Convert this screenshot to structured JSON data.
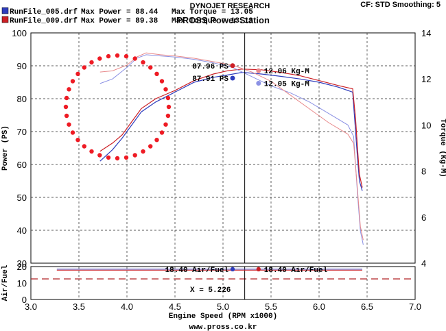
{
  "header": {
    "lab": "DYNOJET RESEARCH",
    "station": "PROSS Power Station",
    "cf": "CF: STD  Smoothing: 5",
    "runs": [
      {
        "color": "#2e3dbd",
        "file": "RunFile_005.drf",
        "power": "Max Power = 88.44",
        "torque": "Max Torque = 13.05"
      },
      {
        "color": "#cc1f25",
        "file": "RunFile_009.drf",
        "power": "Max Power = 89.38",
        "torque": "Max Torque = 13.13"
      }
    ]
  },
  "footer": {
    "url": "www.pross.co.kr"
  },
  "chart_data": [
    {
      "type": "line",
      "xlabel": "Engine Speed (RPM x1000)",
      "ylabel": "Power (PS)",
      "y2label": "Torque (Kg-M)",
      "xlim": [
        3.0,
        7.0
      ],
      "ylim": [
        30,
        100
      ],
      "y2lim": [
        4,
        14
      ],
      "x_ticks": [
        "3.0",
        "3.5",
        "4.0",
        "4.5",
        "5.0",
        "5.5",
        "6.0",
        "6.5",
        "7.0"
      ],
      "y_ticks": [
        "30",
        "40",
        "50",
        "60",
        "70",
        "80",
        "90",
        "100"
      ],
      "y2_ticks": [
        "4",
        "6",
        "8",
        "10",
        "12",
        "14"
      ],
      "grid": "dashed",
      "cursor_x": 5.226,
      "series": [
        {
          "axis": "power",
          "color": "#2e3dbd",
          "x": [
            3.72,
            3.85,
            3.95,
            4.05,
            4.15,
            4.3,
            4.5,
            4.7,
            4.9,
            5.05,
            5.2,
            5.4,
            5.6,
            5.8,
            6.0,
            6.2,
            6.35,
            6.38,
            6.4,
            6.42,
            6.45
          ],
          "y": [
            61.0,
            64.5,
            68.0,
            72.0,
            76.0,
            79.0,
            82.0,
            85.0,
            86.5,
            87.2,
            88.0,
            87.5,
            86.8,
            86.0,
            85.0,
            83.5,
            82.0,
            70.0,
            62.0,
            55.0,
            52.0
          ]
        },
        {
          "axis": "power",
          "color": "#cc1f25",
          "x": [
            3.72,
            3.85,
            3.95,
            4.05,
            4.15,
            4.3,
            4.5,
            4.7,
            4.9,
            5.05,
            5.2,
            5.4,
            5.6,
            5.8,
            6.0,
            6.2,
            6.35,
            6.38,
            6.4,
            6.42,
            6.45
          ],
          "y": [
            64.0,
            66.5,
            69.0,
            73.0,
            77.0,
            80.0,
            82.5,
            85.5,
            87.5,
            88.5,
            89.0,
            88.8,
            88.0,
            87.0,
            85.5,
            84.0,
            83.0,
            74.0,
            65.0,
            57.0,
            53.0
          ]
        },
        {
          "axis": "torque",
          "color": "#8b91e4",
          "x": [
            3.72,
            3.85,
            4.0,
            4.1,
            4.2,
            4.35,
            4.5,
            4.7,
            4.9,
            5.1,
            5.3,
            5.5,
            5.7,
            5.9,
            6.1,
            6.3,
            6.36,
            6.4,
            6.43,
            6.46
          ],
          "y": [
            11.8,
            12.0,
            12.5,
            12.9,
            13.05,
            13.0,
            12.95,
            12.85,
            12.7,
            12.5,
            12.1,
            11.7,
            11.4,
            11.0,
            10.5,
            10.0,
            9.5,
            7.0,
            5.4,
            4.8
          ]
        },
        {
          "axis": "torque",
          "color": "#e8898b",
          "x": [
            3.72,
            3.85,
            4.0,
            4.1,
            4.2,
            4.35,
            4.5,
            4.7,
            4.9,
            5.1,
            5.3,
            5.5,
            5.7,
            5.9,
            6.1,
            6.3,
            6.36,
            6.4,
            6.43,
            6.46
          ],
          "y": [
            12.3,
            12.35,
            12.6,
            12.95,
            13.13,
            13.05,
            13.0,
            12.9,
            12.75,
            12.6,
            12.3,
            11.9,
            11.3,
            10.7,
            10.1,
            9.6,
            9.2,
            7.2,
            5.6,
            5.0
          ]
        }
      ],
      "markers": [
        {
          "color": "#cc1f25",
          "axis": "power",
          "x": 5.1,
          "y": 87.96,
          "label": "87.96 PS"
        },
        {
          "color": "#2e3dbd",
          "axis": "power",
          "x": 5.1,
          "y": 87.91,
          "label": "87.91 PS"
        },
        {
          "color": "#e8898b",
          "axis": "torque",
          "x": 5.37,
          "y": 12.06,
          "label": "12.06 Kg-M"
        },
        {
          "color": "#8b91e4",
          "axis": "torque",
          "x": 5.37,
          "y": 12.05,
          "label": "12.05 Kg-M"
        }
      ],
      "annotation": "dotted-circle"
    },
    {
      "type": "line",
      "ylabel": "Air/Fuel",
      "ylim": [
        0,
        20
      ],
      "y_ticks": [
        "0",
        "10",
        "20"
      ],
      "series": [
        {
          "color": "#2e3dbd",
          "x": [
            3.27,
            6.45
          ],
          "y": [
            18.4,
            18.4
          ]
        },
        {
          "color": "#cc1f25",
          "x": [
            3.27,
            6.45
          ],
          "y": [
            18.4,
            18.4
          ]
        }
      ],
      "reference_y": 12.5,
      "markers": [
        {
          "color": "#2e3dbd",
          "x": 5.1,
          "y": 18.4,
          "label": "18.40 Air/Fuel"
        },
        {
          "color": "#cc1f25",
          "x": 5.37,
          "y": 18.4,
          "label": "18.40 Air/Fuel"
        }
      ],
      "cursor_label": "X = 5.226"
    }
  ]
}
